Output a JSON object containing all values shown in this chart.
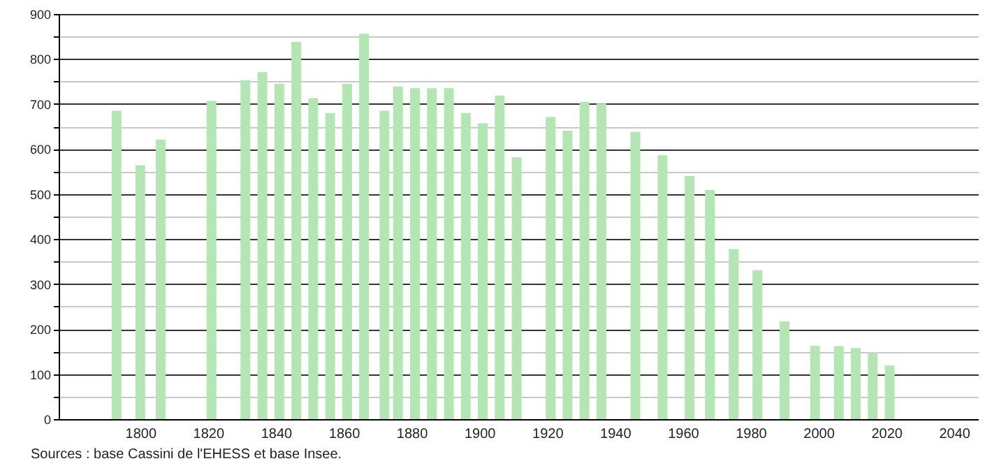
{
  "chart_data": {
    "type": "bar",
    "x": [
      1793,
      1800,
      1806,
      1821,
      1831,
      1836,
      1841,
      1846,
      1851,
      1856,
      1861,
      1866,
      1872,
      1876,
      1881,
      1886,
      1891,
      1896,
      1901,
      1906,
      1911,
      1921,
      1926,
      1931,
      1936,
      1946,
      1954,
      1962,
      1968,
      1975,
      1982,
      1990,
      1999,
      2006,
      2011,
      2016,
      2021
    ],
    "values": [
      685,
      564,
      621,
      707,
      753,
      771,
      745,
      838,
      713,
      680,
      745,
      856,
      685,
      739,
      735,
      735,
      735,
      680,
      657,
      719,
      582,
      671,
      641,
      705,
      701,
      638,
      586,
      540,
      509,
      378,
      331,
      217,
      163,
      162,
      158,
      148,
      119
    ],
    "color": "#b3e6b3",
    "xlim": [
      1778,
      2045
    ],
    "xticks": [
      1800,
      1820,
      1840,
      1860,
      1880,
      1900,
      1920,
      1940,
      1960,
      1980,
      2000,
      2020,
      2040
    ],
    "ylim": [
      0,
      900
    ],
    "yticks": [
      0,
      {
        "value": 50,
        "label": null
      },
      100,
      {
        "value": 150,
        "label": null
      },
      200,
      {
        "value": 250,
        "label": null
      },
      300,
      {
        "value": 350,
        "label": null
      },
      400,
      {
        "value": 450,
        "label": null
      },
      500,
      {
        "value": 550,
        "label": null
      },
      600,
      {
        "value": 650,
        "label": null
      },
      700,
      {
        "value": 750,
        "label": null
      },
      800,
      {
        "value": 850,
        "label": null
      },
      900
    ],
    "grid": "y",
    "annotations": [
      "Sources : base Cassini de l'EHESS et base Insee."
    ]
  }
}
